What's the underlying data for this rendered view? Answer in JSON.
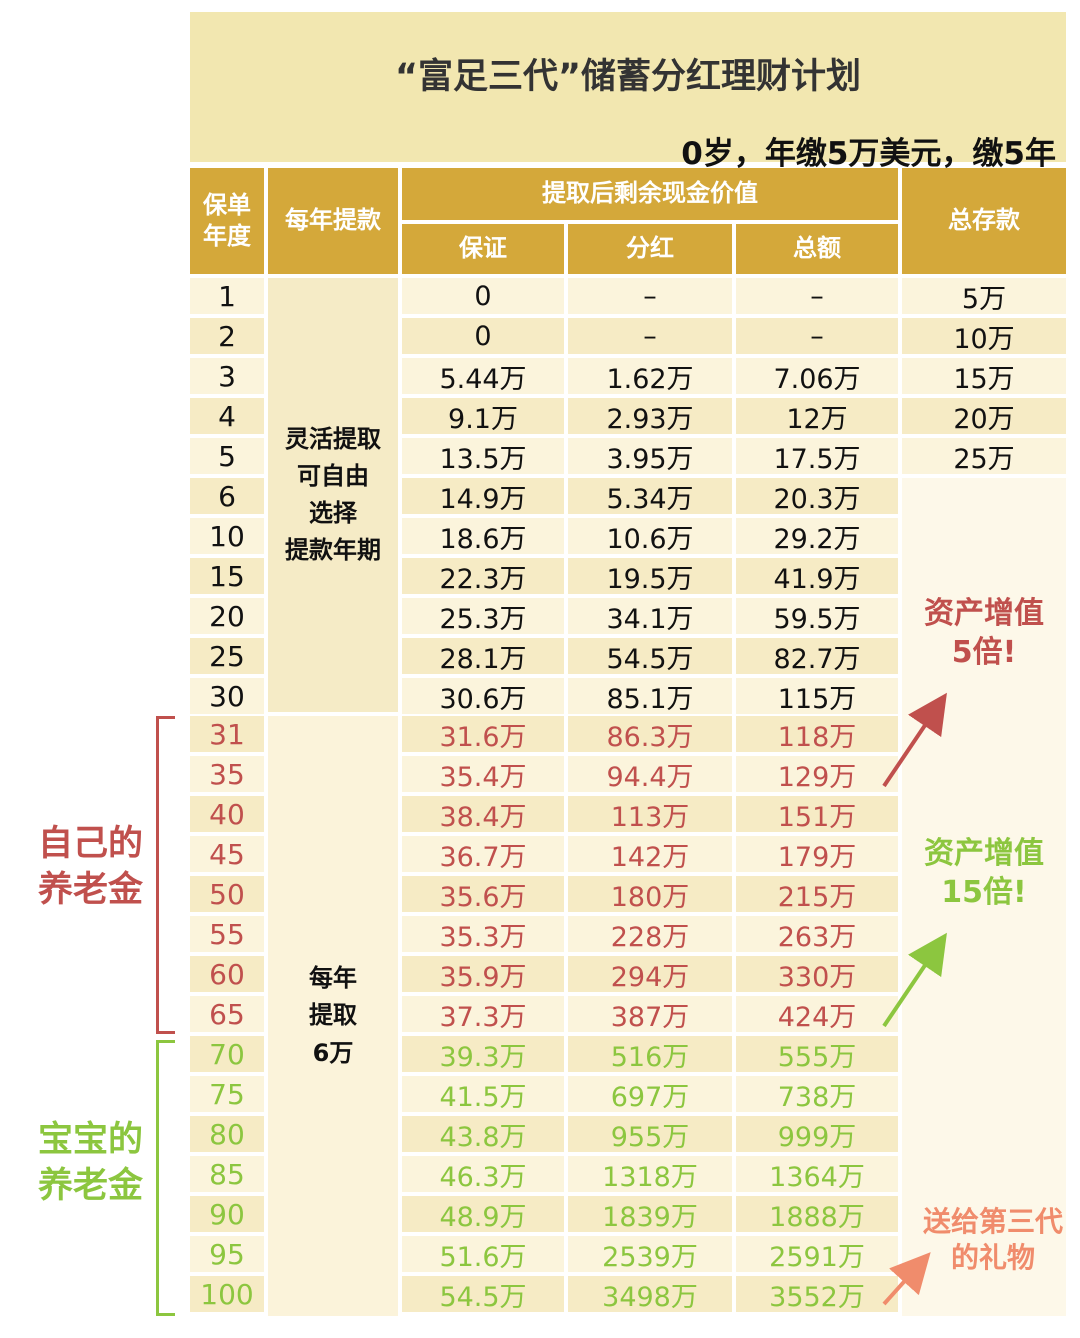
{
  "title": "“富足三代”储蓄分红理财计划",
  "subtitle": "0岁，年缴5万美元，缴5年",
  "headers": {
    "year": "保单\n年度",
    "withdraw": "每年提款",
    "remaining": "提取后剩余现金价值",
    "guaranteed": "保证",
    "dividend": "分红",
    "total": "总额",
    "deposit": "总存款"
  },
  "withdraw_notes": {
    "flexible": "灵活提取\n可自由\n选择\n提款年期",
    "annual": "每年\n提取\n6万"
  },
  "rows": [
    {
      "year": "1",
      "g": "0",
      "d": "–",
      "t": "–",
      "dep": "5万"
    },
    {
      "year": "2",
      "g": "0",
      "d": "–",
      "t": "–",
      "dep": "10万"
    },
    {
      "year": "3",
      "g": "5.44万",
      "d": "1.62万",
      "t": "7.06万",
      "dep": "15万"
    },
    {
      "year": "4",
      "g": "9.1万",
      "d": "2.93万",
      "t": "12万",
      "dep": "20万"
    },
    {
      "year": "5",
      "g": "13.5万",
      "d": "3.95万",
      "t": "17.5万",
      "dep": "25万"
    },
    {
      "year": "6",
      "g": "14.9万",
      "d": "5.34万",
      "t": "20.3万",
      "dep": ""
    },
    {
      "year": "10",
      "g": "18.6万",
      "d": "10.6万",
      "t": "29.2万",
      "dep": ""
    },
    {
      "year": "15",
      "g": "22.3万",
      "d": "19.5万",
      "t": "41.9万",
      "dep": ""
    },
    {
      "year": "20",
      "g": "25.3万",
      "d": "34.1万",
      "t": "59.5万",
      "dep": ""
    },
    {
      "year": "25",
      "g": "28.1万",
      "d": "54.5万",
      "t": "82.7万",
      "dep": ""
    },
    {
      "year": "30",
      "g": "30.6万",
      "d": "85.1万",
      "t": "115万",
      "dep": ""
    },
    {
      "year": "31",
      "g": "31.6万",
      "d": "86.3万",
      "t": "118万",
      "dep": ""
    },
    {
      "year": "35",
      "g": "35.4万",
      "d": "94.4万",
      "t": "129万",
      "dep": ""
    },
    {
      "year": "40",
      "g": "38.4万",
      "d": "113万",
      "t": "151万",
      "dep": ""
    },
    {
      "year": "45",
      "g": "36.7万",
      "d": "142万",
      "t": "179万",
      "dep": ""
    },
    {
      "year": "50",
      "g": "35.6万",
      "d": "180万",
      "t": "215万",
      "dep": ""
    },
    {
      "year": "55",
      "g": "35.3万",
      "d": "228万",
      "t": "263万",
      "dep": ""
    },
    {
      "year": "60",
      "g": "35.9万",
      "d": "294万",
      "t": "330万",
      "dep": ""
    },
    {
      "year": "65",
      "g": "37.3万",
      "d": "387万",
      "t": "424万",
      "dep": ""
    },
    {
      "year": "70",
      "g": "39.3万",
      "d": "516万",
      "t": "555万",
      "dep": ""
    },
    {
      "year": "75",
      "g": "41.5万",
      "d": "697万",
      "t": "738万",
      "dep": ""
    },
    {
      "year": "80",
      "g": "43.8万",
      "d": "955万",
      "t": "999万",
      "dep": ""
    },
    {
      "year": "85",
      "g": "46.3万",
      "d": "1318万",
      "t": "1364万",
      "dep": ""
    },
    {
      "year": "90",
      "g": "48.9万",
      "d": "1839万",
      "t": "1888万",
      "dep": ""
    },
    {
      "year": "95",
      "g": "51.6万",
      "d": "2539万",
      "t": "2591万",
      "dep": ""
    },
    {
      "year": "100",
      "g": "54.5万",
      "d": "3498万",
      "t": "3552万",
      "dep": ""
    }
  ],
  "labels": {
    "own_pension": "自己的\n养老金",
    "baby_pension": "宝宝的\n养老金"
  },
  "notes": {
    "growth_5x": "资产增值\n5倍!",
    "growth_15x": "资产增值\n15倍!",
    "gift": "送给第三代\n的礼物"
  },
  "colors": {
    "header": "#d4a83a",
    "red_text": "#c0504d",
    "green_text": "#8cc63f",
    "orange_text": "#f08c6c"
  }
}
